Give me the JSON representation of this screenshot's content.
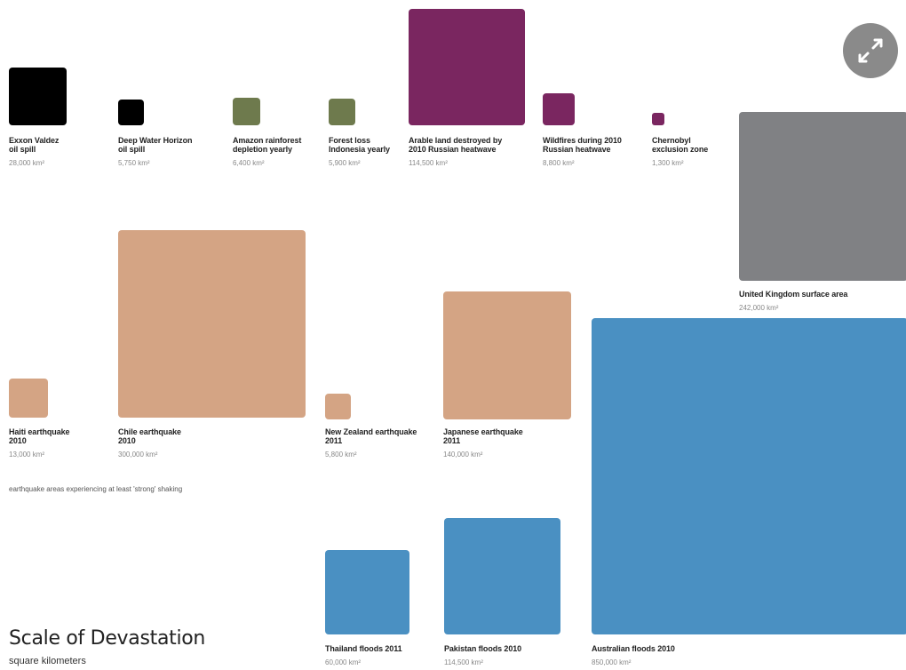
{
  "title": "Scale of Devastation",
  "subtitle": "square kilometers",
  "note": "earthquake areas experiencing at least 'strong' shaking",
  "expand_icon": "expand-arrows-icon",
  "colors": {
    "oil": "#000000",
    "forest": "#6e7a4d",
    "heatwave": "#7a2660",
    "nuclear": "#7a2660",
    "reference": "#808184",
    "earthquake": "#d4a484",
    "flood": "#4a90c2"
  },
  "chart_data": {
    "type": "area-squares",
    "title": "Scale of Devastation",
    "subtitle": "square kilometers",
    "items": [
      {
        "label": "Exxon Valdez\noil spill",
        "value": 28000,
        "display": "28,000 km²",
        "category": "oil"
      },
      {
        "label": "Deep Water Horizon\noil spill",
        "value": 5750,
        "display": "5,750 km²",
        "category": "oil"
      },
      {
        "label": "Amazon rainforest\ndepletion yearly",
        "value": 6400,
        "display": "6,400 km²",
        "category": "forest"
      },
      {
        "label": "Forest loss\nIndonesia yearly",
        "value": 5900,
        "display": "5,900 km²",
        "category": "forest"
      },
      {
        "label": "Arable land destroyed by\n2010 Russian heatwave",
        "value": 114500,
        "display": "114,500 km²",
        "category": "heatwave"
      },
      {
        "label": "Wildfires during 2010\nRussian heatwave",
        "value": 8800,
        "display": "8,800 km²",
        "category": "heatwave"
      },
      {
        "label": "Chernobyl\nexclusion zone",
        "value": 1300,
        "display": "1,300 km²",
        "category": "nuclear"
      },
      {
        "label": "United Kingdom surface area",
        "value": 242000,
        "display": "242,000 km²",
        "category": "reference"
      },
      {
        "label": "Haiti earthquake\n2010",
        "value": 13000,
        "display": "13,000 km²",
        "category": "earthquake"
      },
      {
        "label": "Chile earthquake\n2010",
        "value": 300000,
        "display": "300,000 km²",
        "category": "earthquake"
      },
      {
        "label": "New Zealand earthquake\n2011",
        "value": 5800,
        "display": "5,800 km²",
        "category": "earthquake"
      },
      {
        "label": "Japanese earthquake\n2011",
        "value": 140000,
        "display": "140,000 km²",
        "category": "earthquake"
      },
      {
        "label": "Thailand floods 2011",
        "value": 60000,
        "display": "60,000 km²",
        "category": "flood"
      },
      {
        "label": "Pakistan floods 2010",
        "value": 114500,
        "display": "114,500 km²",
        "category": "flood"
      },
      {
        "label": "Australian floods 2010",
        "value": 850000,
        "display": "850,000 km²",
        "category": "flood"
      }
    ]
  }
}
